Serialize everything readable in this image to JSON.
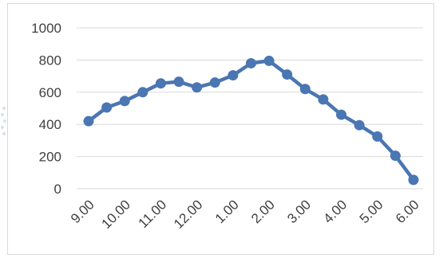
{
  "chart_data": {
    "type": "line",
    "title": "",
    "xlabel": "",
    "ylabel": "",
    "categories": [
      "9.00",
      "",
      "10.00",
      "",
      "11.00",
      "",
      "12.00",
      "",
      "1.00",
      "",
      "2.00",
      "",
      "3.00",
      "",
      "4.00",
      "",
      "5.00",
      "",
      "6.00"
    ],
    "tick_labels": [
      "9.00",
      "10.00",
      "11.00",
      "12.00",
      "1.00",
      "2.00",
      "3.00",
      "4.00",
      "5.00",
      "6.00"
    ],
    "y_ticks": [
      "0",
      "200",
      "400",
      "600",
      "800",
      "1000"
    ],
    "ylim": [
      0,
      1000
    ],
    "grid": true,
    "legend": "none",
    "series": [
      {
        "values": [
          420,
          505,
          545,
          600,
          655,
          665,
          630,
          660,
          705,
          780,
          795,
          710,
          620,
          555,
          460,
          395,
          325,
          205,
          55
        ]
      }
    ],
    "colors": {
      "line": "#4a76b2",
      "marker": "#4a76b2",
      "grid": "#d9d9d9",
      "axis_text": "#404040"
    }
  }
}
